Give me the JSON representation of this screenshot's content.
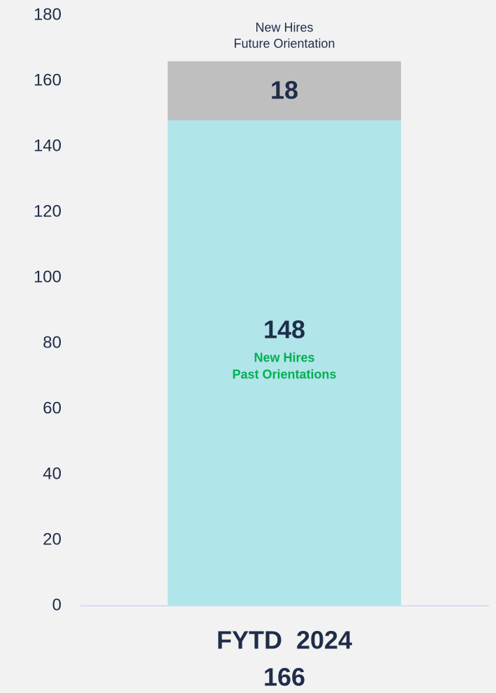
{
  "chart_data": {
    "type": "stacked_bar",
    "categories": [
      "FYTD  2024"
    ],
    "totals": [
      166
    ],
    "series": [
      {
        "name": "New Hires\nPast Orientations",
        "color": "#b0e5ea",
        "values": [
          148
        ]
      },
      {
        "name": "New Hires\nFuture Orientation",
        "color": "#bfbfbf",
        "values": [
          18
        ]
      }
    ],
    "ylim": [
      0,
      180
    ],
    "yticks": [
      0,
      20,
      40,
      60,
      80,
      100,
      120,
      140,
      160,
      180
    ]
  }
}
